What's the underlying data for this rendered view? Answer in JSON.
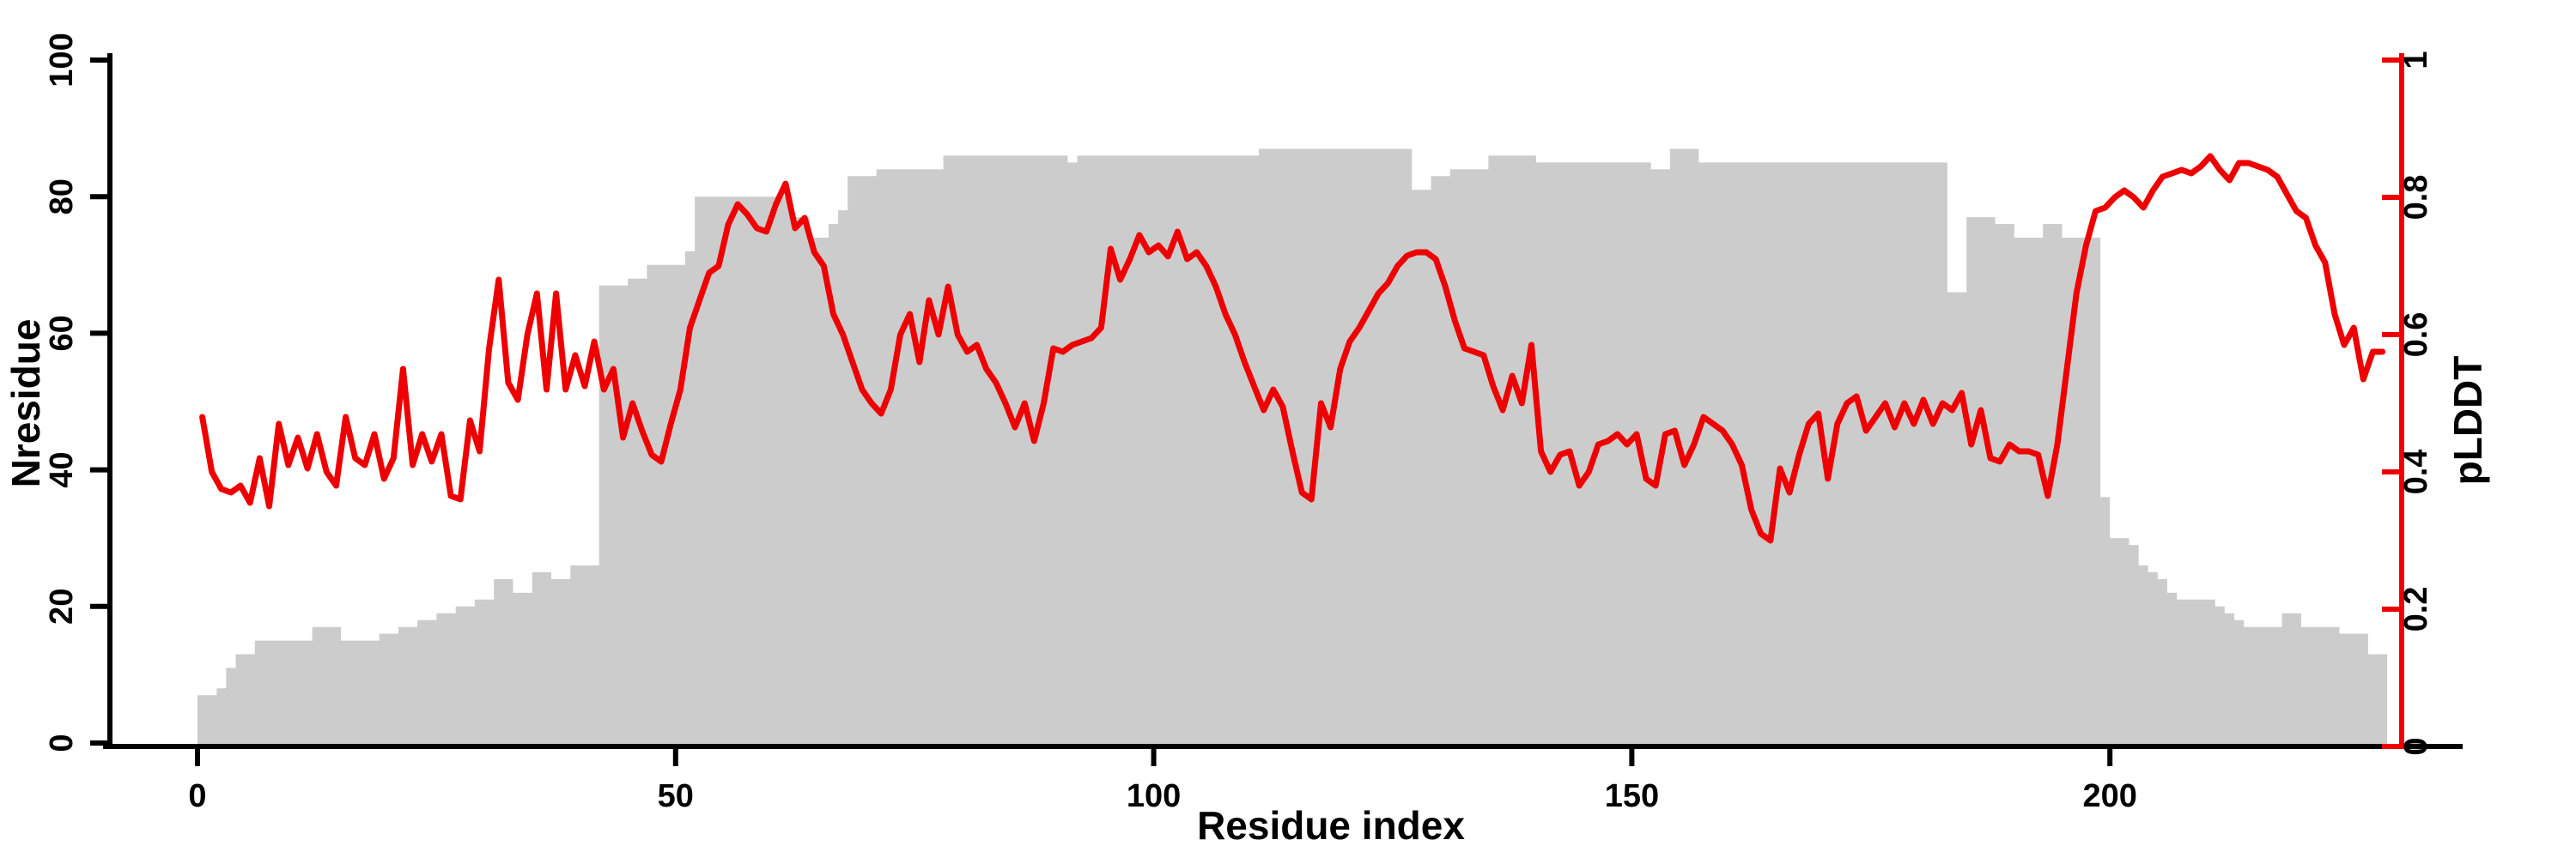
{
  "chart_data": {
    "type": "bar",
    "title": "",
    "xlabel": "Residue index",
    "ylabel_left": "Nresidue",
    "ylabel_right": "pLDDT",
    "x_ticks": [
      0,
      50,
      100,
      150,
      200
    ],
    "left_ticks": [
      0,
      20,
      40,
      60,
      80,
      100
    ],
    "right_ticks": [
      "0",
      "0.2",
      "0.4",
      "0.6",
      "0.8",
      "1"
    ],
    "right_tick_values": [
      0,
      0.2,
      0.4,
      0.6,
      0.8,
      1
    ],
    "xlim": [
      0,
      230.5
    ],
    "left_ylim": [
      0,
      100
    ],
    "right_ylim": [
      0,
      1
    ],
    "grid": false,
    "legend": "none",
    "bar_color": "#cccccc",
    "line_color": "#ee0000",
    "axis_color": "#000000",
    "x_start": 1,
    "series": [
      {
        "name": "Nresidue",
        "axis": "left",
        "type": "bar",
        "values": [
          7,
          7,
          8,
          11,
          13,
          13,
          15,
          15,
          15,
          15,
          15,
          15,
          17,
          17,
          17,
          15,
          15,
          15,
          15,
          16,
          16,
          17,
          17,
          18,
          18,
          19,
          19,
          20,
          20,
          21,
          21,
          24,
          24,
          22,
          22,
          25,
          25,
          24,
          24,
          26,
          26,
          26,
          67,
          67,
          67,
          68,
          68,
          70,
          70,
          70,
          70,
          72,
          80,
          80,
          80,
          80,
          80,
          80,
          80,
          80,
          80,
          80,
          77,
          77,
          74,
          74,
          76,
          78,
          83,
          83,
          83,
          84,
          84,
          84,
          84,
          84,
          84,
          84,
          86,
          86,
          86,
          86,
          86,
          86,
          86,
          86,
          86,
          86,
          86,
          86,
          86,
          85,
          86,
          86,
          86,
          86,
          86,
          86,
          86,
          86,
          86,
          86,
          86,
          86,
          86,
          86,
          86,
          86,
          86,
          86,
          86,
          87,
          87,
          87,
          87,
          87,
          87,
          87,
          87,
          87,
          87,
          87,
          87,
          87,
          87,
          87,
          87,
          81,
          81,
          83,
          83,
          84,
          84,
          84,
          84,
          86,
          86,
          86,
          86,
          86,
          85,
          85,
          85,
          85,
          85,
          85,
          85,
          85,
          85,
          85,
          85,
          85,
          84,
          84,
          87,
          87,
          87,
          85,
          85,
          85,
          85,
          85,
          85,
          85,
          85,
          85,
          85,
          85,
          85,
          85,
          85,
          85,
          85,
          85,
          85,
          85,
          85,
          85,
          85,
          85,
          85,
          85,
          85,
          66,
          66,
          77,
          77,
          77,
          76,
          76,
          74,
          74,
          74,
          76,
          76,
          74,
          74,
          74,
          74,
          36,
          30,
          30,
          29,
          26,
          25,
          24,
          22,
          21,
          21,
          21,
          21,
          20,
          19,
          18,
          17,
          17,
          17,
          17,
          19,
          19,
          17,
          17,
          17,
          17,
          16,
          16,
          16,
          13,
          13
        ]
      },
      {
        "name": "pLDDT",
        "axis": "right",
        "type": "line",
        "values": [
          0.48,
          0.4,
          0.375,
          0.37,
          0.38,
          0.355,
          0.42,
          0.35,
          0.47,
          0.41,
          0.45,
          0.405,
          0.455,
          0.4,
          0.38,
          0.48,
          0.42,
          0.41,
          0.455,
          0.39,
          0.42,
          0.55,
          0.41,
          0.455,
          0.415,
          0.455,
          0.365,
          0.36,
          0.475,
          0.43,
          0.58,
          0.68,
          0.53,
          0.505,
          0.6,
          0.66,
          0.52,
          0.66,
          0.52,
          0.57,
          0.525,
          0.59,
          0.52,
          0.55,
          0.45,
          0.5,
          0.46,
          0.425,
          0.415,
          0.47,
          0.52,
          0.61,
          0.65,
          0.69,
          0.7,
          0.76,
          0.79,
          0.775,
          0.755,
          0.75,
          0.79,
          0.82,
          0.755,
          0.77,
          0.72,
          0.7,
          0.63,
          0.6,
          0.56,
          0.52,
          0.5,
          0.485,
          0.52,
          0.6,
          0.63,
          0.56,
          0.65,
          0.6,
          0.67,
          0.6,
          0.575,
          0.585,
          0.55,
          0.53,
          0.5,
          0.465,
          0.5,
          0.445,
          0.5,
          0.58,
          0.575,
          0.585,
          0.59,
          0.595,
          0.61,
          0.725,
          0.68,
          0.71,
          0.745,
          0.72,
          0.73,
          0.714,
          0.75,
          0.71,
          0.72,
          0.7,
          0.67,
          0.63,
          0.6,
          0.56,
          0.525,
          0.49,
          0.52,
          0.495,
          0.43,
          0.37,
          0.36,
          0.5,
          0.465,
          0.55,
          0.59,
          0.61,
          0.635,
          0.66,
          0.675,
          0.7,
          0.715,
          0.72,
          0.72,
          0.71,
          0.67,
          0.62,
          0.58,
          0.575,
          0.57,
          0.525,
          0.49,
          0.54,
          0.5,
          0.585,
          0.43,
          0.4,
          0.425,
          0.43,
          0.38,
          0.4,
          0.44,
          0.445,
          0.455,
          0.44,
          0.455,
          0.39,
          0.38,
          0.455,
          0.46,
          0.41,
          0.44,
          0.48,
          0.47,
          0.46,
          0.44,
          0.41,
          0.345,
          0.31,
          0.3,
          0.405,
          0.37,
          0.425,
          0.47,
          0.485,
          0.39,
          0.47,
          0.5,
          0.51,
          0.46,
          0.48,
          0.5,
          0.465,
          0.5,
          0.47,
          0.505,
          0.47,
          0.5,
          0.49,
          0.515,
          0.44,
          0.49,
          0.42,
          0.415,
          0.44,
          0.43,
          0.43,
          0.425,
          0.365,
          0.44,
          0.55,
          0.66,
          0.73,
          0.78,
          0.785,
          0.8,
          0.81,
          0.8,
          0.785,
          0.81,
          0.83,
          0.835,
          0.84,
          0.835,
          0.845,
          0.86,
          0.84,
          0.825,
          0.85,
          0.85,
          0.845,
          0.84,
          0.83,
          0.805,
          0.78,
          0.77,
          0.73,
          0.705,
          0.63,
          0.585,
          0.61,
          0.535,
          0.575,
          0.575
        ]
      }
    ]
  }
}
